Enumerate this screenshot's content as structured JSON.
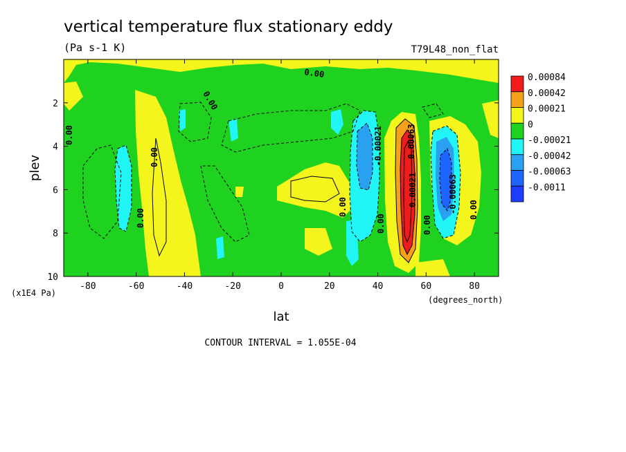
{
  "chart_data": {
    "type": "heatmap",
    "title": "vertical temperature flux stationary eddy",
    "units": "(Pa s-1 K)",
    "dataset_label": "T79L48_non_flat",
    "xlabel": "lat",
    "x_units": "(degrees_north)",
    "ylabel": "plev",
    "y_units": "(x1E4 Pa)",
    "xlim": [
      -90,
      90
    ],
    "ylim": [
      10,
      0
    ],
    "x_ticks": [
      "-80",
      "-60",
      "-40",
      "-20",
      "0",
      "20",
      "40",
      "60",
      "80"
    ],
    "y_ticks": [
      "2",
      "4",
      "6",
      "8",
      "10"
    ],
    "colorbar": {
      "levels": [
        "0.00084",
        "0.00042",
        "0.00021",
        "0",
        "-0.00021",
        "-0.00042",
        "-0.00063",
        "-0.0011"
      ],
      "colors": [
        "#ee1c1c",
        "#f5a21a",
        "#f5f51e",
        "#1fd21f",
        "#21f5f5",
        "#2aa0f0",
        "#1e64ff",
        "#1e3cff"
      ]
    },
    "contour_labels": [
      "0.00",
      "0.00",
      "0.00",
      "0.00",
      "0.00",
      "0.00",
      "0.00",
      "0.00",
      "-0.00021",
      "0.00021",
      "0.00063",
      "-0.00063",
      "0.00"
    ],
    "contour_interval": "CONTOUR INTERVAL = 1.055E-04"
  }
}
